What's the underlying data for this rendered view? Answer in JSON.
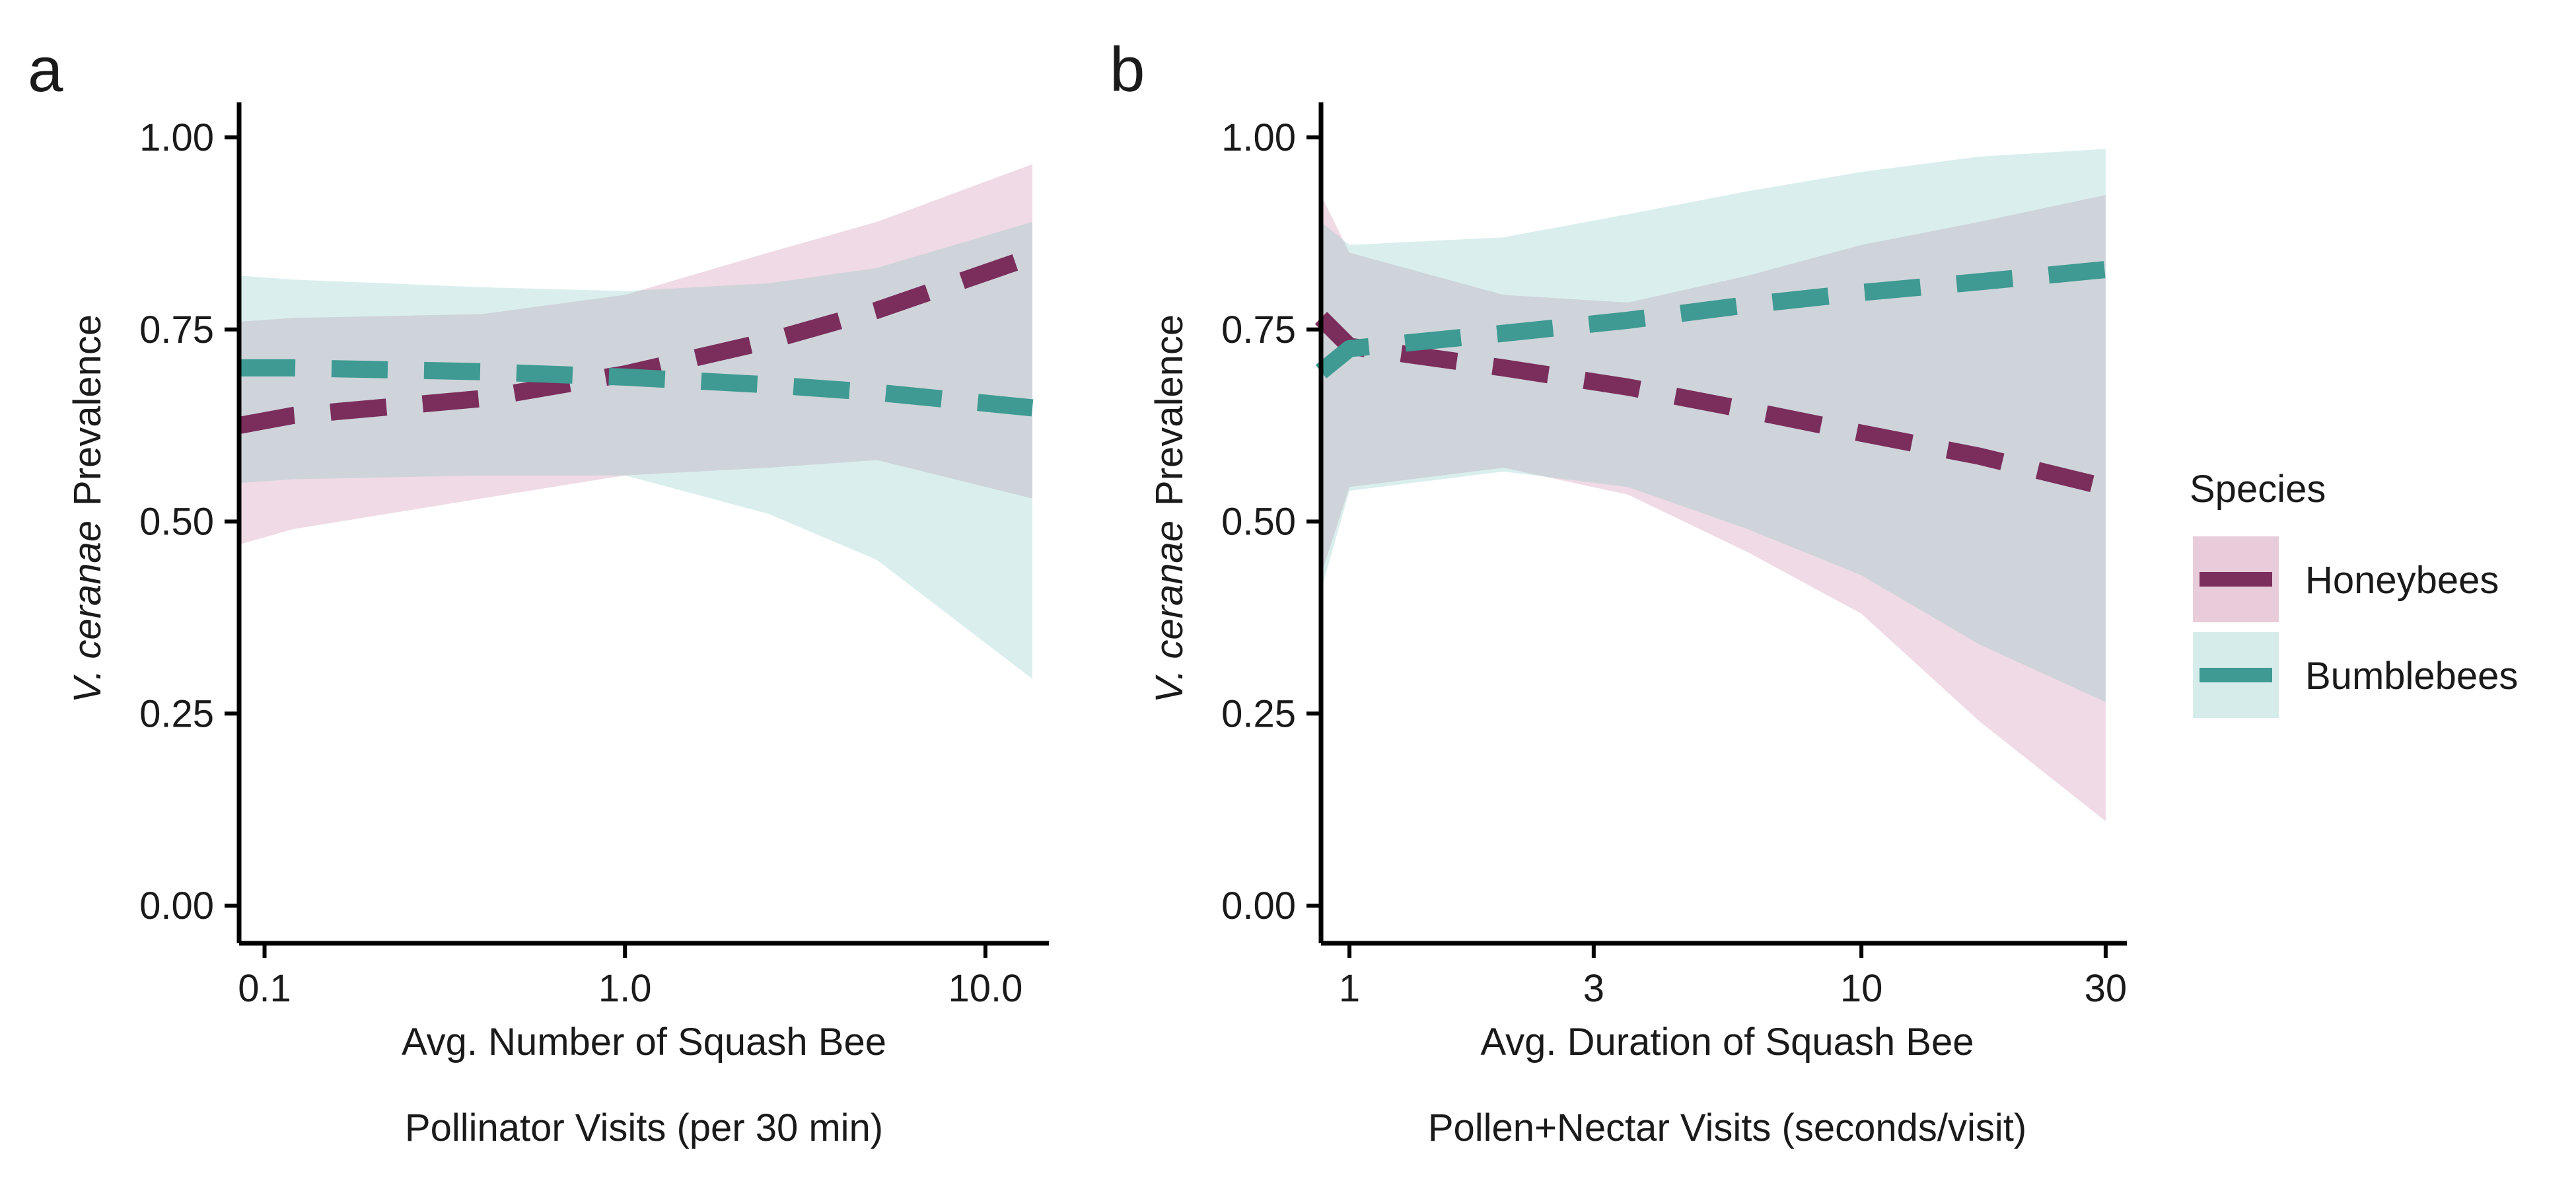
{
  "figure": {
    "colors": {
      "honeybees_line": "#7B2D5C",
      "honeybees_fill": "#E8CCDA",
      "bumblebees_line": "#3E9A92",
      "bumblebees_fill": "#D6ECEA",
      "overlap_fill": "#C9CCD1",
      "axis": "#000000"
    }
  },
  "legend": {
    "title": "Species",
    "items": [
      {
        "label": "Honeybees",
        "color_key": "honeybees"
      },
      {
        "label": "Bumblebees",
        "color_key": "bumblebees"
      }
    ]
  },
  "chart_data": [
    {
      "panel": "a",
      "type": "line",
      "x_scale": "log10",
      "xlim": [
        0.085,
        15
      ],
      "ylim": [
        0,
        1
      ],
      "xlabel_lines": [
        "Avg. Number of Squash Bee",
        "Pollinator Visits (per 30 min)"
      ],
      "ylabel_italic": "V. ceranae",
      "ylabel_rest": "Prevalence",
      "x_ticks": [
        {
          "value": 0.1,
          "label": "0.1"
        },
        {
          "value": 1.0,
          "label": "1.0"
        },
        {
          "value": 10.0,
          "label": "10.0"
        }
      ],
      "y_ticks": [
        {
          "value": 0.0,
          "label": "0.00"
        },
        {
          "value": 0.25,
          "label": "0.25"
        },
        {
          "value": 0.5,
          "label": "0.50"
        },
        {
          "value": 0.75,
          "label": "0.75"
        },
        {
          "value": 1.0,
          "label": "1.00"
        }
      ],
      "series": [
        {
          "name": "Honeybees",
          "x": [
            0.085,
            0.12,
            0.4,
            1.0,
            2.5,
            5.0,
            13.5
          ],
          "y": [
            0.625,
            0.638,
            0.66,
            0.692,
            0.735,
            0.775,
            0.845
          ],
          "lower": [
            0.47,
            0.49,
            0.53,
            0.56,
            0.57,
            0.58,
            0.53
          ],
          "upper": [
            0.76,
            0.765,
            0.77,
            0.795,
            0.85,
            0.89,
            0.965
          ]
        },
        {
          "name": "Bumblebees",
          "x": [
            0.085,
            0.12,
            0.4,
            1.0,
            2.5,
            5.0,
            13.5
          ],
          "y": [
            0.7,
            0.7,
            0.695,
            0.688,
            0.678,
            0.668,
            0.648
          ],
          "lower": [
            0.55,
            0.555,
            0.56,
            0.56,
            0.51,
            0.45,
            0.295
          ],
          "upper": [
            0.82,
            0.815,
            0.805,
            0.8,
            0.81,
            0.83,
            0.89
          ]
        }
      ]
    },
    {
      "panel": "b",
      "type": "line",
      "x_scale": "log10",
      "xlim": [
        0.88,
        33
      ],
      "ylim": [
        0,
        1
      ],
      "xlabel_lines": [
        "Avg. Duration of Squash Bee",
        "Pollen+Nectar Visits (seconds/visit)"
      ],
      "ylabel_italic": "V. ceranae",
      "ylabel_rest": "Prevalence",
      "x_ticks": [
        {
          "value": 1,
          "label": "1"
        },
        {
          "value": 3,
          "label": "3"
        },
        {
          "value": 10,
          "label": "10"
        },
        {
          "value": 30,
          "label": "30"
        }
      ],
      "y_ticks": [
        {
          "value": 0.0,
          "label": "0.00"
        },
        {
          "value": 0.25,
          "label": "0.25"
        },
        {
          "value": 0.5,
          "label": "0.50"
        },
        {
          "value": 0.75,
          "label": "0.75"
        },
        {
          "value": 1.0,
          "label": "1.00"
        }
      ],
      "series": [
        {
          "name": "Honeybees",
          "x": [
            0.88,
            1.0,
            2.0,
            3.5,
            6.0,
            10.0,
            17.0,
            30.0
          ],
          "y": [
            0.765,
            0.728,
            0.7,
            0.675,
            0.645,
            0.615,
            0.585,
            0.545
          ],
          "lower": [
            0.43,
            0.545,
            0.57,
            0.535,
            0.46,
            0.38,
            0.24,
            0.11
          ],
          "upper": [
            0.925,
            0.85,
            0.795,
            0.785,
            0.82,
            0.86,
            0.89,
            0.925
          ]
        },
        {
          "name": "Bumblebees",
          "x": [
            0.88,
            1.0,
            2.0,
            3.5,
            6.0,
            10.0,
            17.0,
            30.0
          ],
          "y": [
            0.695,
            0.725,
            0.745,
            0.762,
            0.782,
            0.798,
            0.812,
            0.828
          ],
          "lower": [
            0.41,
            0.54,
            0.565,
            0.545,
            0.49,
            0.43,
            0.34,
            0.265
          ],
          "upper": [
            0.89,
            0.86,
            0.87,
            0.9,
            0.93,
            0.955,
            0.975,
            0.985
          ]
        }
      ]
    }
  ]
}
